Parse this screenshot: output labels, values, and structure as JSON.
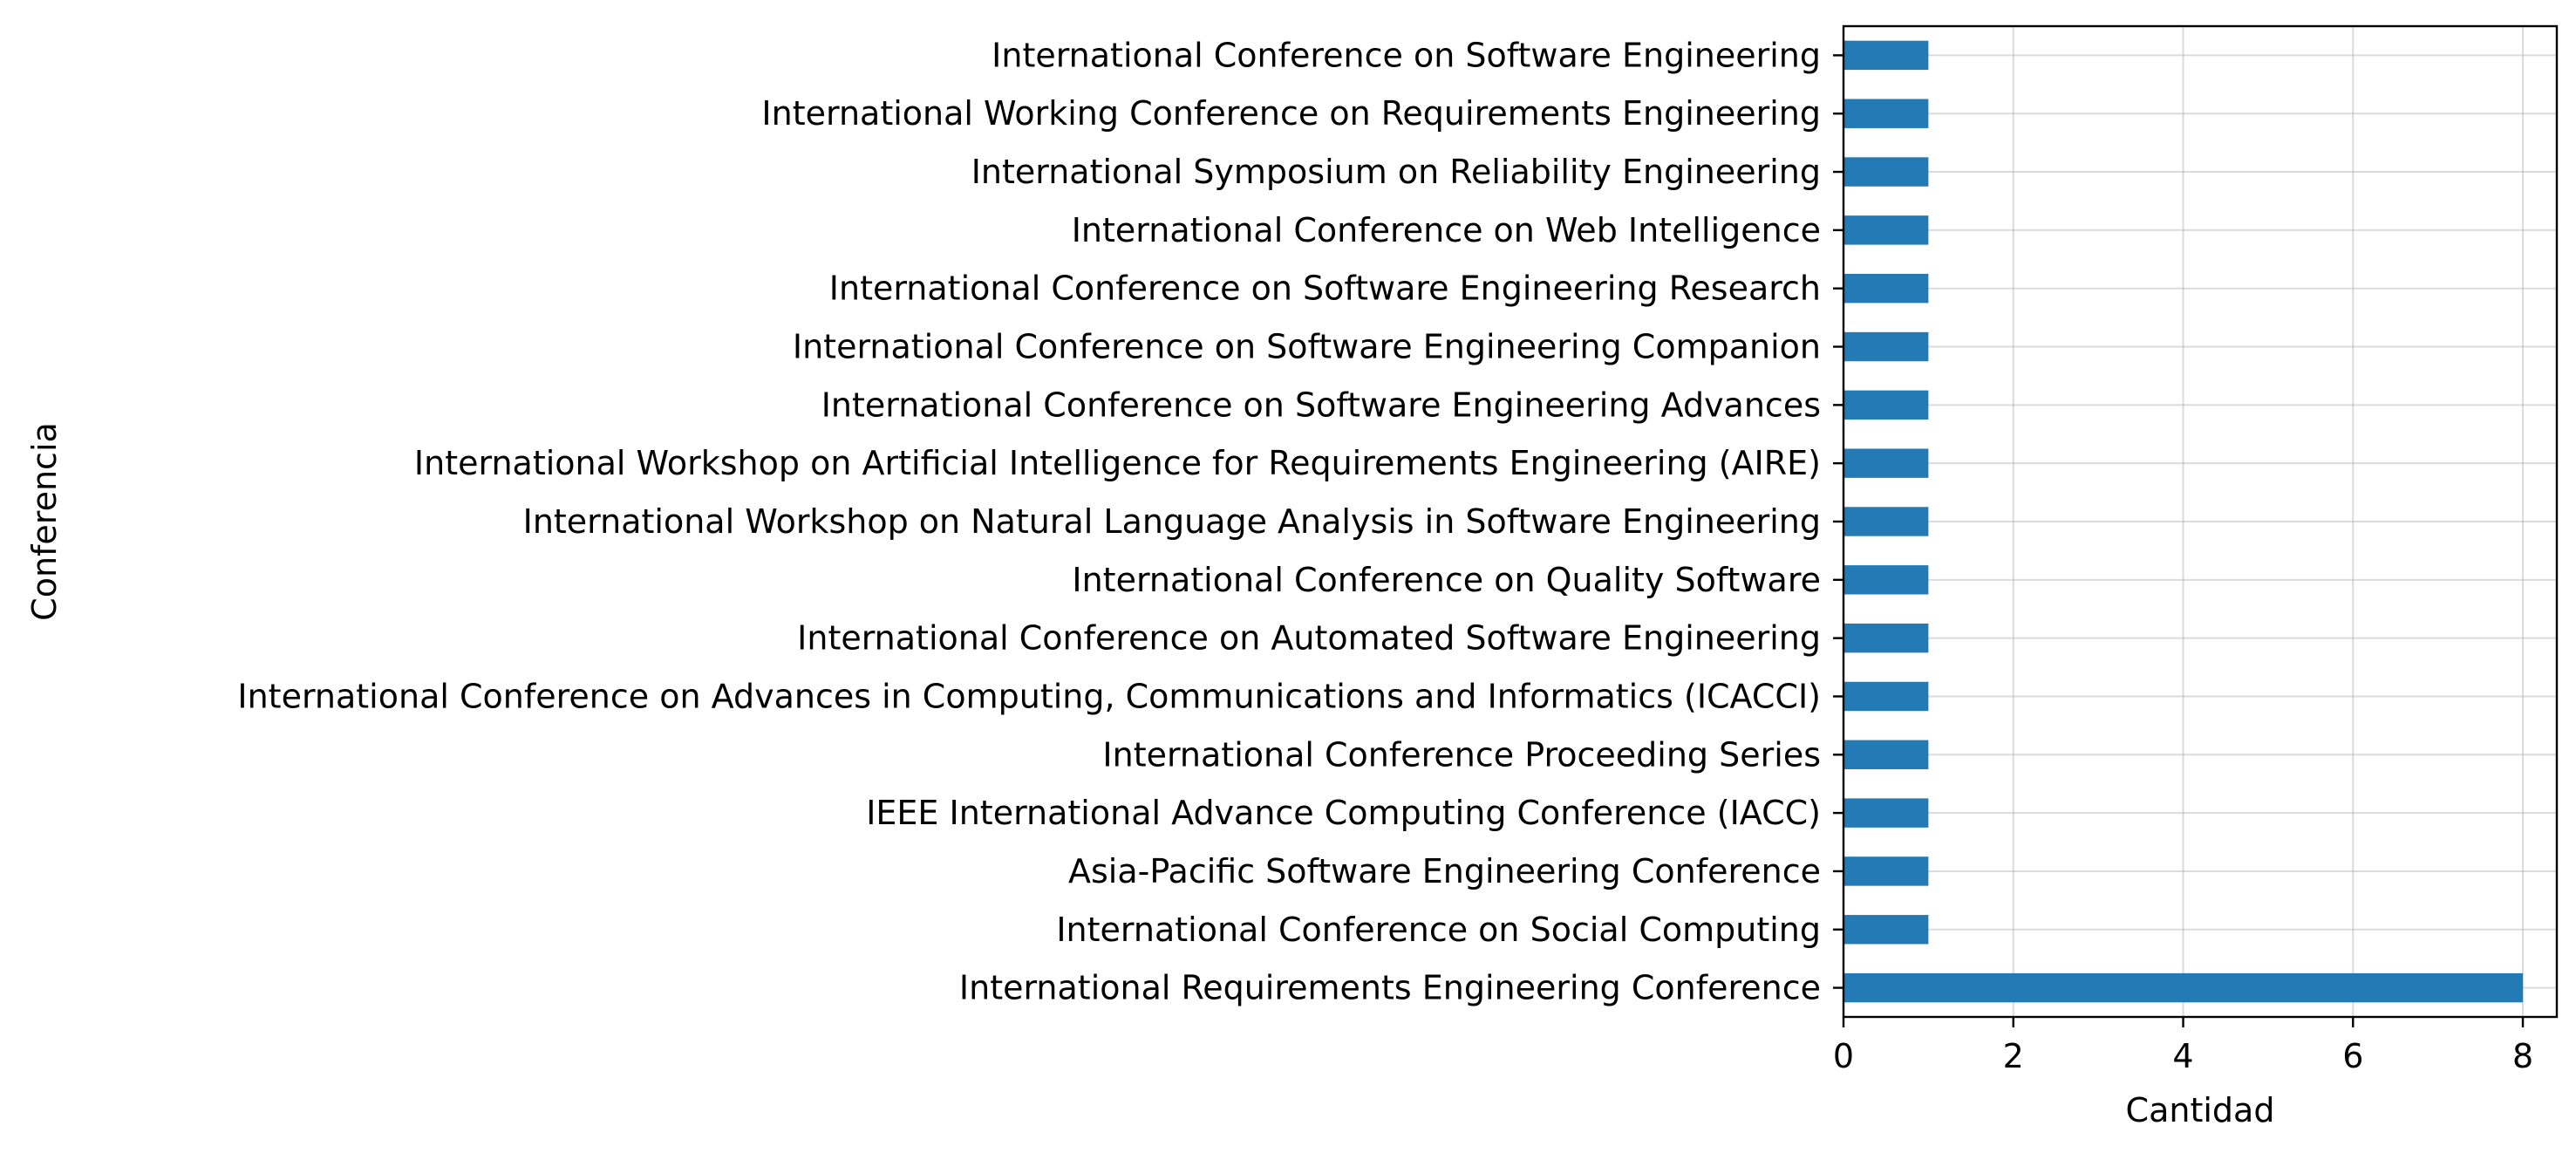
{
  "chart_data": {
    "type": "bar",
    "orientation": "horizontal",
    "categories": [
      "International Conference on Software Engineering",
      "International Working Conference on Requirements Engineering",
      "International Symposium on Reliability Engineering",
      "International Conference on Web Intelligence",
      "International Conference on Software Engineering Research",
      "International Conference on Software Engineering Companion",
      "International Conference on Software Engineering Advances",
      "International Workshop on Artificial Intelligence for Requirements Engineering (AIRE)",
      "International Workshop on Natural Language Analysis in Software Engineering",
      "International Conference on Quality Software",
      "International Conference on Automated Software Engineering",
      "International Conference on Advances in Computing, Communications and Informatics (ICACCI)",
      "International Conference Proceeding Series",
      "IEEE International Advance Computing Conference (IACC)",
      "Asia-Pacific Software Engineering Conference",
      "International Conference on Social Computing",
      "International Requirements Engineering Conference"
    ],
    "values": [
      1,
      1,
      1,
      1,
      1,
      1,
      1,
      1,
      1,
      1,
      1,
      1,
      1,
      1,
      1,
      1,
      8
    ],
    "title": "",
    "xlabel": "Cantidad",
    "ylabel": "Conferencia",
    "xlim": [
      0,
      8.4
    ],
    "xticks": [
      "0",
      "2",
      "4",
      "6",
      "8"
    ],
    "grid": true,
    "bar_color": "#1f77b4"
  }
}
